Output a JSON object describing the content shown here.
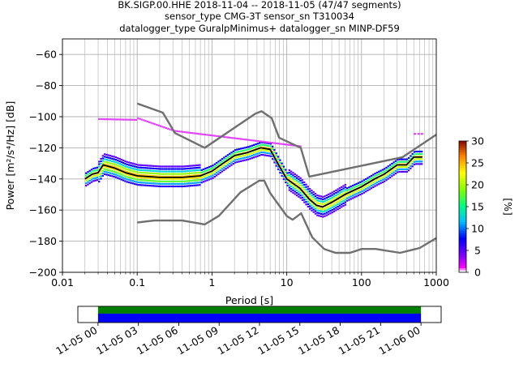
{
  "title_lines": [
    "BK.SIGP.00.HHE   2018-11-04 -- 2018-11-05  (47/47 segments)",
    "sensor_type CMG-3T sensor_sn T310034",
    "datalogger_type GuralpMinimus+ datalogger_sn MINP-DF59"
  ],
  "chart_data": {
    "type": "heatmap",
    "title": "BK.SIGP.00.HHE   2018-11-04 -- 2018-11-05  (47/47 segments)",
    "xlabel": "Period [s]",
    "ylabel": "Power [m²/s⁴/Hz] [dB]",
    "x_scale": "log",
    "xlim": [
      0.01,
      1000
    ],
    "ylim": [
      -200,
      -50
    ],
    "x_ticks": [
      0.01,
      0.1,
      1,
      10,
      100,
      1000
    ],
    "x_tick_labels": [
      "0.01",
      "0.1",
      "1",
      "10",
      "100",
      "1000"
    ],
    "y_ticks": [
      -200,
      -180,
      -160,
      -140,
      -120,
      -100,
      -80,
      -60
    ],
    "y_tick_labels": [
      "−200",
      "−180",
      "−160",
      "−140",
      "−120",
      "−100",
      "−80",
      "−60"
    ],
    "grid": true,
    "colorbar": {
      "label": "[%]",
      "range": [
        0,
        30
      ],
      "ticks": [
        0,
        5,
        10,
        15,
        20,
        25,
        30
      ]
    },
    "series": [
      {
        "role": "mean psd",
        "color": "#000000",
        "x": [
          0.02,
          0.025,
          0.03,
          0.035,
          0.05,
          0.07,
          0.1,
          0.2,
          0.4,
          0.7,
          1,
          1.5,
          2,
          3,
          4.5,
          6,
          8,
          10,
          15,
          20,
          25,
          30,
          40,
          60,
          100,
          150,
          200,
          300,
          400,
          500,
          650
        ],
        "y": [
          -140,
          -137,
          -136,
          -131,
          -133,
          -136,
          -138,
          -139,
          -139,
          -138,
          -135,
          -129,
          -125,
          -123,
          -120,
          -121,
          -132,
          -140,
          -146,
          -153,
          -157,
          -158,
          -155,
          -150,
          -145,
          -140,
          -137,
          -131,
          -131,
          -126,
          -126
        ]
      },
      {
        "role": "noise model high",
        "color": "#6f6f6f",
        "x": [
          0.1,
          0.22,
          0.32,
          0.8,
          3.8,
          4.6,
          6.3,
          7.9,
          15.4,
          20,
          354.8,
          1000
        ],
        "y": [
          -91.5,
          -97.4,
          -110.5,
          -120,
          -98,
          -96.5,
          -101,
          -113.5,
          -120,
          -138.5,
          -126,
          -111.5
        ]
      },
      {
        "role": "noise model low",
        "color": "#6f6f6f",
        "x": [
          0.1,
          0.17,
          0.4,
          0.8,
          1.24,
          2.4,
          4.3,
          5,
          6,
          10,
          12,
          15.6,
          21.9,
          31.6,
          45,
          70,
          101,
          154,
          328,
          600,
          1000
        ],
        "y": [
          -168,
          -166.7,
          -166.7,
          -169.2,
          -163.7,
          -148.6,
          -141.1,
          -141.1,
          -149,
          -163.8,
          -166.2,
          -162.1,
          -177.5,
          -185,
          -187.5,
          -187.5,
          -185,
          -185,
          -187.5,
          -184.4,
          -178
        ]
      }
    ],
    "time_coverage": {
      "tick_labels": [
        "11-05 00",
        "11-05 03",
        "11-05 06",
        "11-05 09",
        "11-05 12",
        "11-05 15",
        "11-05 18",
        "11-05 21",
        "11-06 00"
      ],
      "range_hours": [
        -1.5,
        25.5
      ],
      "covered_hours": [
        0,
        24
      ]
    }
  }
}
